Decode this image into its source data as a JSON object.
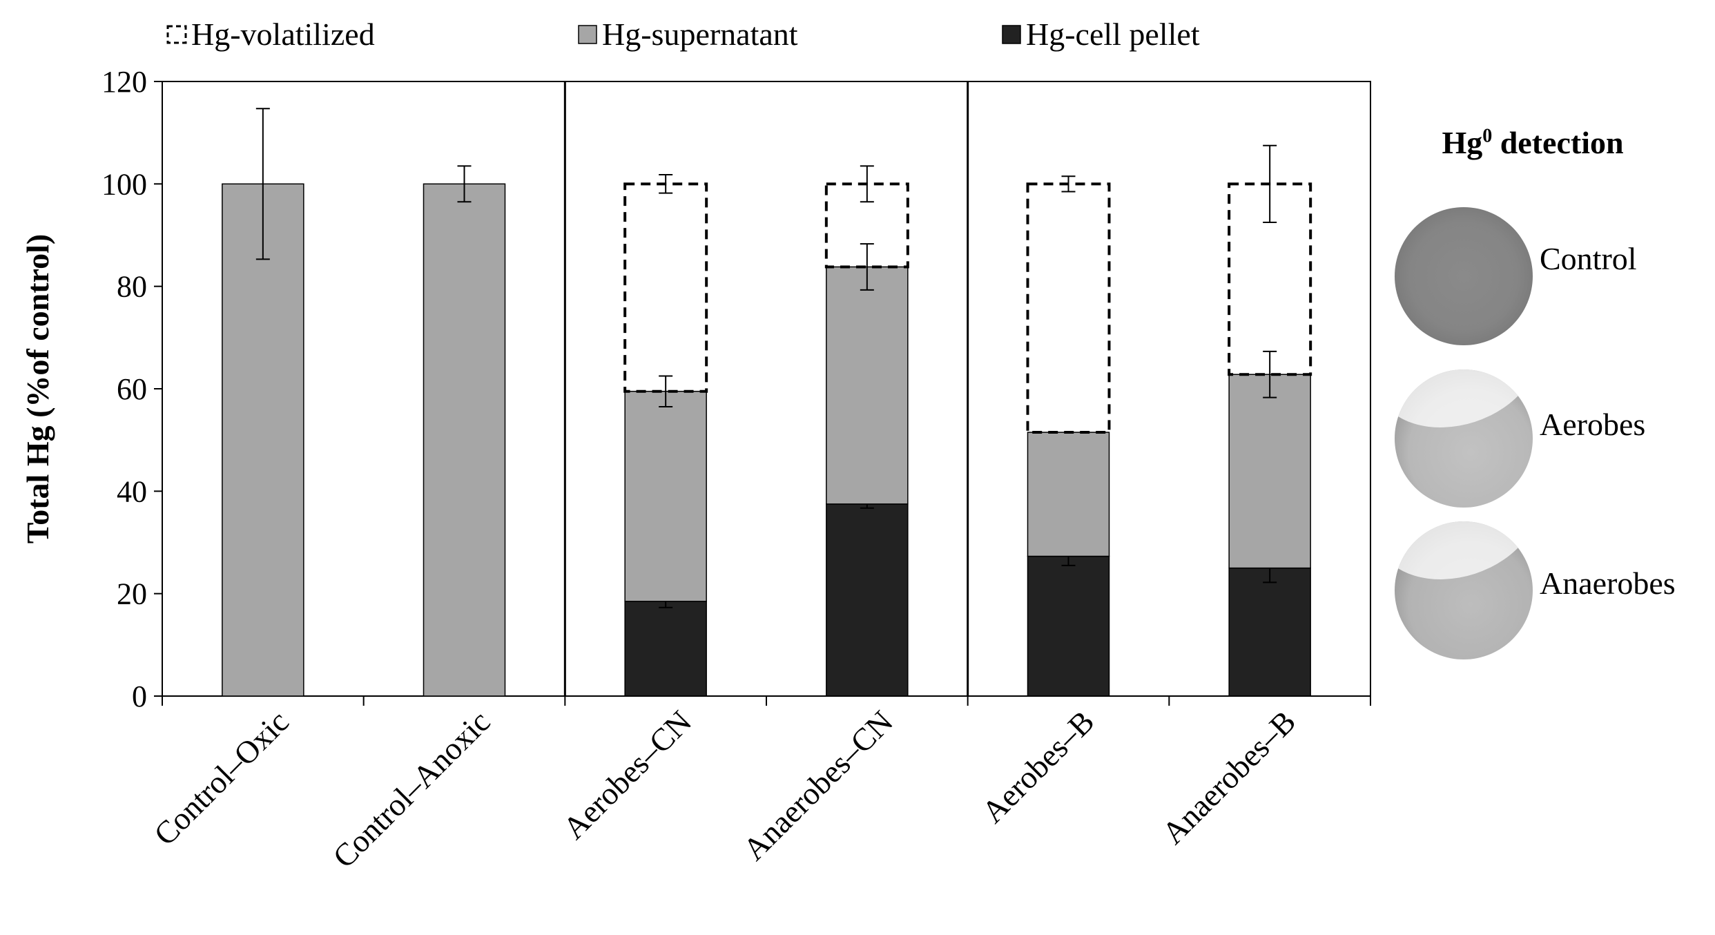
{
  "chart_data": {
    "type": "bar",
    "stacked": true,
    "ylabel": "Total Hg (%of control)",
    "ylim": [
      0,
      120
    ],
    "yticks": [
      0,
      20,
      40,
      60,
      80,
      100,
      120
    ],
    "categories": [
      "Control–Oxic",
      "Control–Anoxic",
      "Aerobes–CN",
      "Anaerobes–CN",
      "Aerobes–B",
      "Anaerobes–B"
    ],
    "legend_position": "top",
    "series": [
      {
        "name": "Hg-cell pellet",
        "style": "solid-dark",
        "values": [
          0,
          0,
          18.5,
          37.5,
          27.3,
          25.0
        ],
        "errors": [
          0,
          0,
          1.2,
          0.8,
          1.8,
          2.8
        ]
      },
      {
        "name": "Hg-supernatant",
        "style": "solid-gray",
        "values": [
          100,
          100,
          41.0,
          46.3,
          24.2,
          37.8
        ],
        "errors": [
          14.7,
          3.5,
          3.0,
          4.5,
          0,
          4.5
        ]
      },
      {
        "name": "Hg-volatilized",
        "style": "dashed-outline",
        "values": [
          0,
          0,
          40.5,
          16.2,
          48.5,
          37.2
        ],
        "errors": [
          0,
          0,
          1.8,
          3.5,
          1.5,
          7.5
        ]
      }
    ],
    "group_separators_after": [
      2,
      4
    ],
    "inset": {
      "title": "Hg",
      "title_sup": "0",
      "title_suffix": " detection",
      "images": [
        {
          "label": "Control",
          "icon": "petri-dish-control"
        },
        {
          "label": "Aerobes",
          "icon": "petri-dish-aerobes"
        },
        {
          "label": "Anaerobes",
          "icon": "petri-dish-anaerobes"
        }
      ]
    },
    "colors": {
      "dark": "#222222",
      "gray": "#a6a6a6",
      "outline": "#000000"
    }
  }
}
